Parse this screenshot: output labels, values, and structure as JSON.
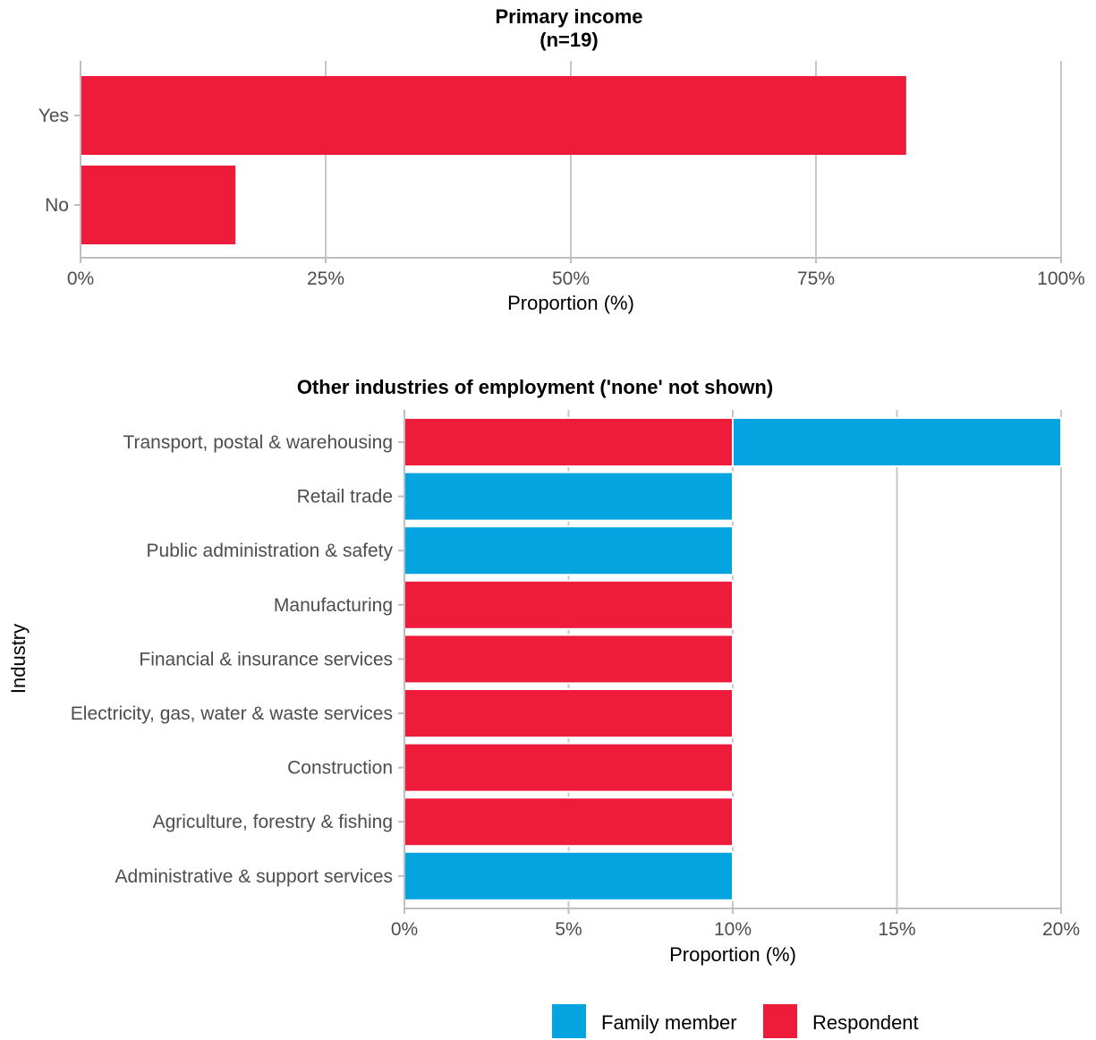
{
  "colors": {
    "respondent": "#ee1b3b",
    "family_member": "#03a4e0",
    "grid": "#c8c8c8",
    "axis": "#bebebe"
  },
  "chart_data": [
    {
      "type": "bar",
      "orientation": "horizontal",
      "title": "Primary income",
      "subtitle": "(n=19)",
      "xlabel": "Proportion (%)",
      "ylabel": "",
      "xlim": [
        0,
        100
      ],
      "x_ticks": [
        "0%",
        "25%",
        "50%",
        "75%",
        "100%"
      ],
      "x_tick_values": [
        0,
        25,
        50,
        75,
        100
      ],
      "categories": [
        "Yes",
        "No"
      ],
      "series": [
        {
          "name": "Respondent",
          "values": [
            84.2,
            15.8
          ]
        }
      ],
      "grid": true
    },
    {
      "type": "bar",
      "orientation": "horizontal",
      "stacked": true,
      "title": "Other industries of employment ('none' not shown)",
      "xlabel": "Proportion (%)",
      "ylabel": "Industry",
      "xlim": [
        0,
        20
      ],
      "x_ticks": [
        "0%",
        "5%",
        "10%",
        "15%",
        "20%"
      ],
      "x_tick_values": [
        0,
        5,
        10,
        15,
        20
      ],
      "categories": [
        "Transport, postal & warehousing",
        "Retail trade",
        "Public administration & safety",
        "Manufacturing",
        "Financial & insurance services",
        "Electricity, gas, water & waste services",
        "Construction",
        "Agriculture, forestry & fishing",
        "Administrative & support services"
      ],
      "series": [
        {
          "name": "Respondent",
          "values": [
            10,
            0,
            0,
            10,
            10,
            10,
            10,
            10,
            0
          ]
        },
        {
          "name": "Family member",
          "values": [
            10,
            10,
            10,
            0,
            0,
            0,
            0,
            0,
            10
          ]
        }
      ],
      "grid": true,
      "legend": {
        "position": "bottom",
        "entries": [
          "Family member",
          "Respondent"
        ]
      }
    }
  ]
}
